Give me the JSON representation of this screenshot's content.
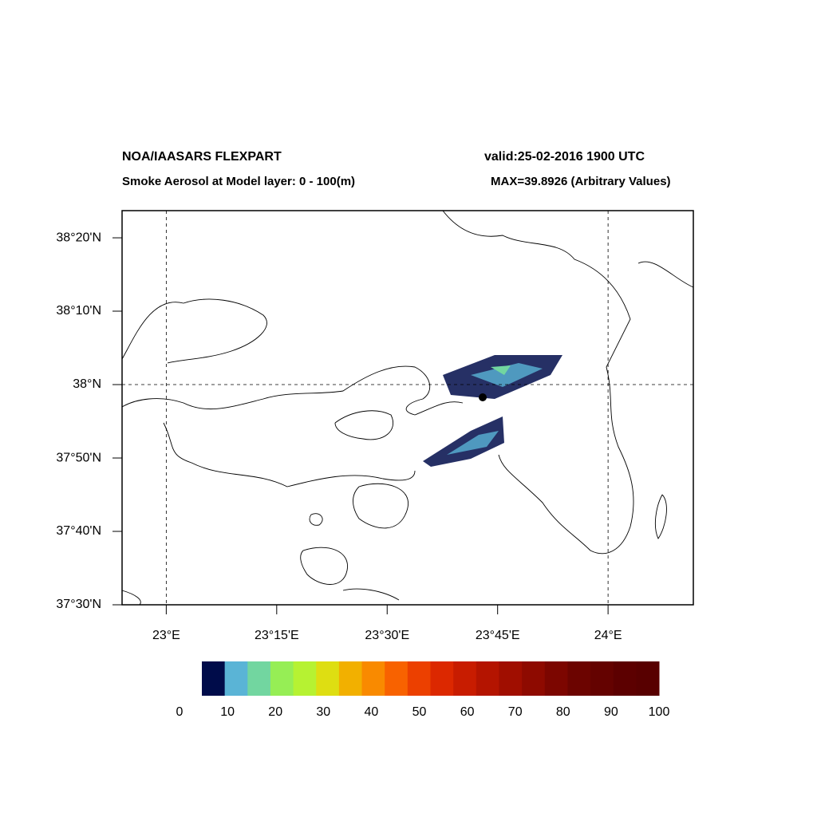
{
  "header": {
    "title": "NOA/IAASARS FLEXPART",
    "valid": "valid:25-02-2016 1900 UTC",
    "subtitle": "Smoke Aerosol at Model layer: 0 - 100(m)",
    "max": "MAX=39.8926 (Arbitrary Values)"
  },
  "map": {
    "lonlim": [
      22.9,
      24.193
    ],
    "latlim": [
      37.5,
      38.395
    ],
    "lat_ticks": [
      {
        "value": 38.3333,
        "label": "38°20'N"
      },
      {
        "value": 38.1667,
        "label": "38°10'N"
      },
      {
        "value": 38,
        "label": "38°N"
      },
      {
        "value": 37.8333,
        "label": "37°50'N"
      },
      {
        "value": 37.6667,
        "label": "37°40'N"
      },
      {
        "value": 37.5,
        "label": "37°30'N"
      }
    ],
    "lon_ticks": [
      {
        "value": 23,
        "label": "23°E"
      },
      {
        "value": 23.25,
        "label": "23°15'E"
      },
      {
        "value": 23.5,
        "label": "23°30'E"
      },
      {
        "value": 23.75,
        "label": "23°45'E"
      },
      {
        "value": 24,
        "label": "24°E"
      }
    ],
    "grid_lon": [
      23,
      24
    ],
    "grid_lat": [
      38
    ]
  },
  "colorbar": {
    "levels": [
      0,
      10,
      20,
      30,
      40,
      50,
      60,
      70,
      80,
      90,
      100
    ],
    "colors": [
      "#000c4a",
      "#5ab4d6",
      "#72d6a0",
      "#96ee55",
      "#b6f232",
      "#dede12",
      "#f2b000",
      "#f98a00",
      "#f86200",
      "#ec4000",
      "#dc2800",
      "#c81c00",
      "#b41400",
      "#a00e00",
      "#8e0a00",
      "#7c0600",
      "#6c0400",
      "#640200",
      "#5c0000",
      "#580000"
    ]
  }
}
